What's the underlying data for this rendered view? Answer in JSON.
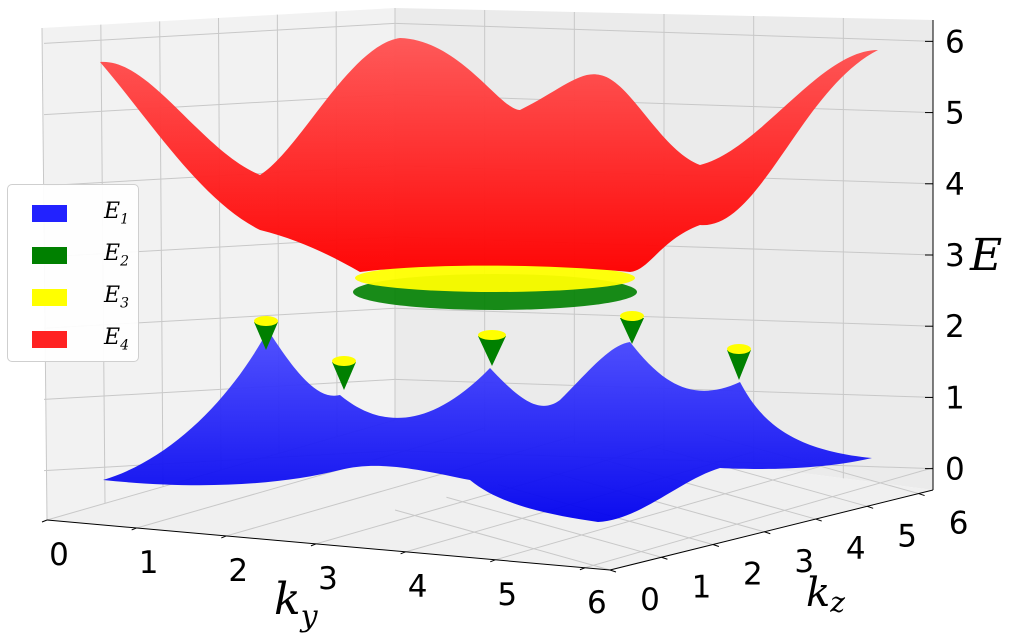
{
  "chart_data": {
    "type": "surface3d",
    "title": "",
    "xlabel": "k",
    "xlabel_sub": "y",
    "ylabel": "k",
    "ylabel_sub": "z",
    "zlabel": "E",
    "xticks": [
      "0",
      "1",
      "2",
      "3",
      "4",
      "5",
      "6"
    ],
    "yticks": [
      "0",
      "1",
      "2",
      "3",
      "4",
      "5",
      "6"
    ],
    "zticks": [
      "0",
      "1",
      "2",
      "3",
      "4",
      "5",
      "6"
    ],
    "xlim": [
      0,
      6.28
    ],
    "ylim": [
      0,
      6.28
    ],
    "zlim": [
      -0.3,
      6.3
    ],
    "grid": true,
    "legend_position": "left",
    "series": [
      {
        "name": "E",
        "sub": "1",
        "color": "#0000ff",
        "range": [
          0.0,
          1.2
        ]
      },
      {
        "name": "E",
        "sub": "2",
        "color": "#008000",
        "range": [
          1.2,
          2.8
        ]
      },
      {
        "name": "E",
        "sub": "3",
        "color": "#ffff00",
        "range": [
          1.7,
          2.9
        ]
      },
      {
        "name": "E",
        "sub": "4",
        "color": "#ff0000",
        "range": [
          2.7,
          6.0
        ]
      }
    ]
  }
}
